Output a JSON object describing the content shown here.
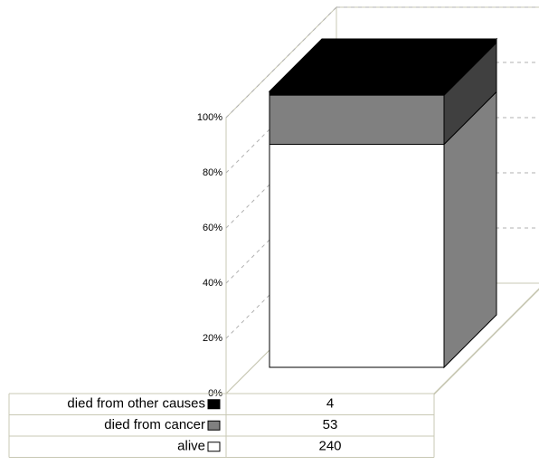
{
  "chart_data": {
    "type": "bar",
    "stacking": "percent",
    "categories": [
      null
    ],
    "series": [
      {
        "name": "alive",
        "color": "#ffffff",
        "values": [
          240
        ]
      },
      {
        "name": "died from cancer",
        "color": "#808080",
        "values": [
          53
        ]
      },
      {
        "name": "died from other causes",
        "color": "#000000",
        "values": [
          4
        ]
      }
    ],
    "ylim": [
      0,
      100
    ],
    "yticks": [
      {
        "value": 0,
        "label": "0%"
      },
      {
        "value": 20,
        "label": "20%"
      },
      {
        "value": 40,
        "label": "40%"
      },
      {
        "value": 60,
        "label": "60%"
      },
      {
        "value": 80,
        "label": "80%"
      },
      {
        "value": 100,
        "label": "100%"
      }
    ],
    "grid": true,
    "data_table": true
  }
}
